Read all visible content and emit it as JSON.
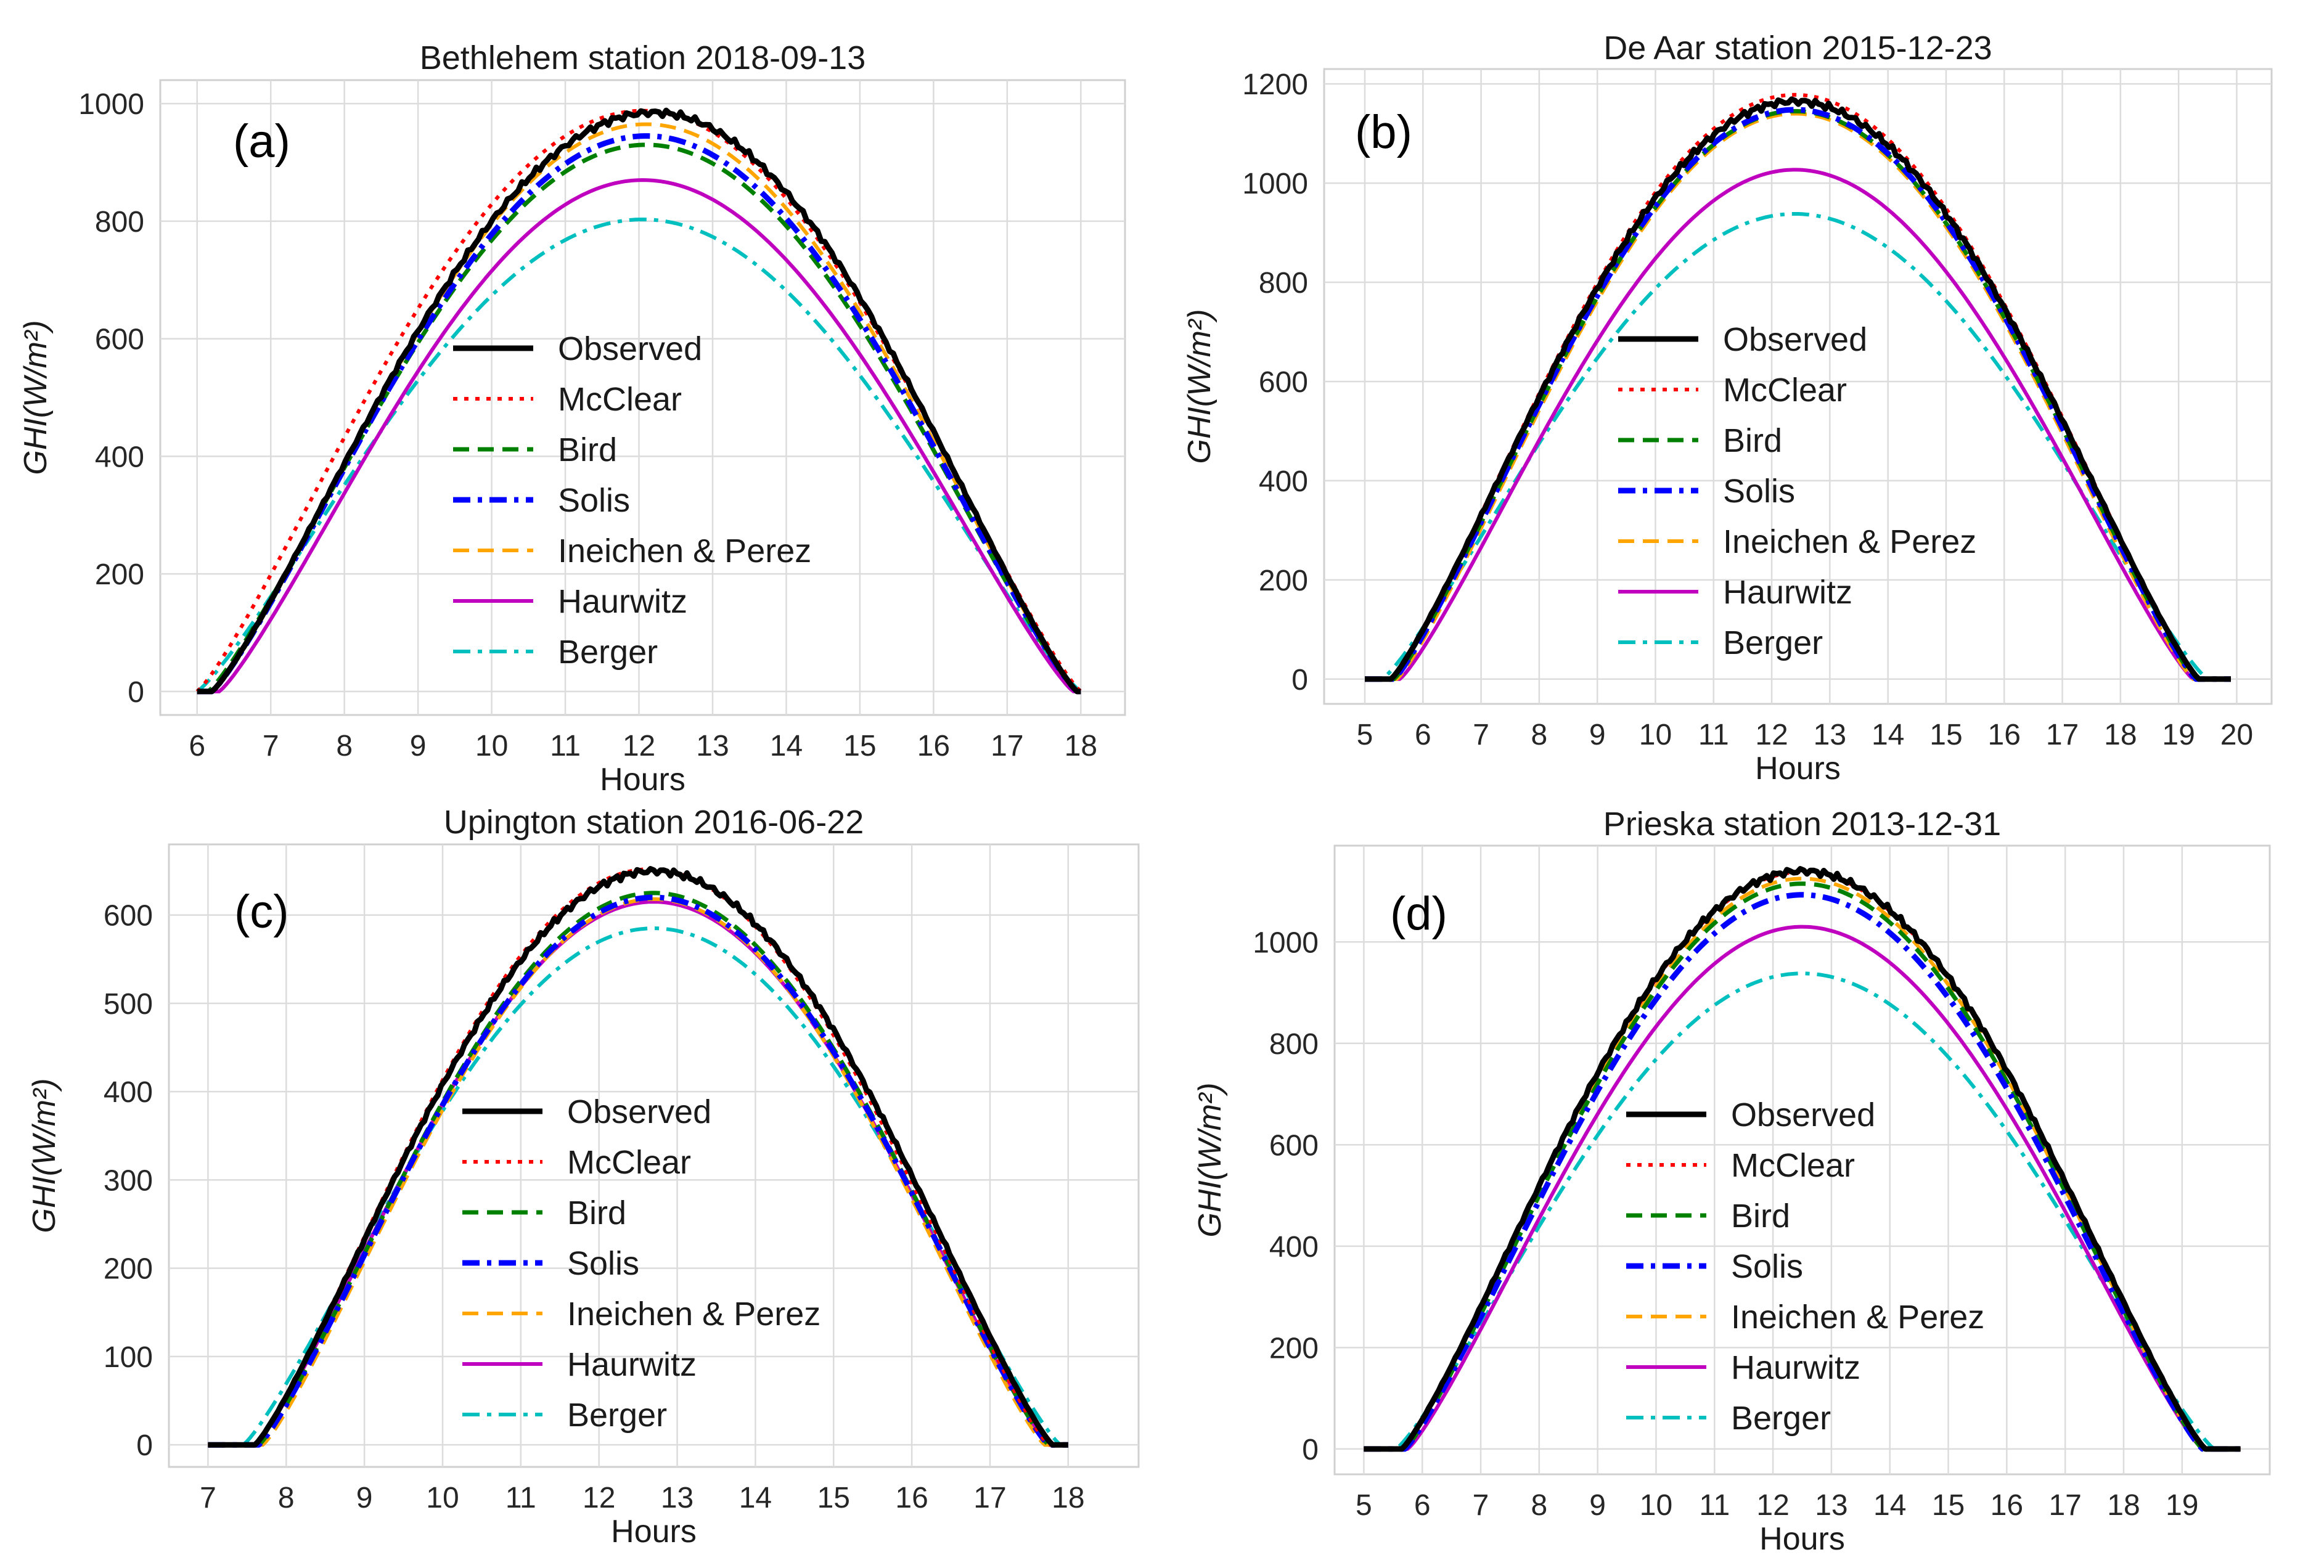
{
  "chart_data": [
    {
      "type": "line",
      "panel_label": "(a)",
      "title": "Bethlehem station 2018-09-13",
      "xlabel": "Hours",
      "ylabel": "GHI(W/m²)",
      "xlim": [
        5.5,
        18.6
      ],
      "ylim": [
        -40,
        1040
      ],
      "xticks": [
        6,
        7,
        8,
        9,
        10,
        11,
        12,
        13,
        14,
        15,
        16,
        17,
        18
      ],
      "yticks": [
        0,
        200,
        400,
        600,
        800,
        1000
      ],
      "grid": true,
      "legend_position": "center",
      "series": [
        {
          "name": "Observed",
          "style": "observed",
          "x_start": 6.2,
          "x_end": 17.95,
          "peak": 985,
          "peak_x": 12.2,
          "flat_start": 6.0,
          "flat_end": 18.0
        },
        {
          "name": "McClear",
          "style": "mcclear",
          "x_start": 6.0,
          "x_end": 18.0,
          "peak": 988,
          "peak_x": 12.05,
          "flat_start": 6.0,
          "flat_end": 18.0
        },
        {
          "name": "Bird",
          "style": "bird",
          "x_start": 6.15,
          "x_end": 17.95,
          "peak": 930,
          "peak_x": 12.1,
          "flat_start": 6.0,
          "flat_end": 18.0
        },
        {
          "name": "Solis",
          "style": "solis",
          "x_start": 6.2,
          "x_end": 17.95,
          "peak": 945,
          "peak_x": 12.1,
          "flat_start": 6.0,
          "flat_end": 18.0
        },
        {
          "name": "Ineichen & Perez",
          "style": "ineichen",
          "x_start": 6.2,
          "x_end": 17.95,
          "peak": 965,
          "peak_x": 12.1,
          "flat_start": 6.0,
          "flat_end": 18.0
        },
        {
          "name": "Haurwitz",
          "style": "haurwitz",
          "x_start": 6.3,
          "x_end": 17.9,
          "peak": 870,
          "peak_x": 12.05,
          "flat_start": 6.0,
          "flat_end": 18.0
        },
        {
          "name": "Berger",
          "style": "berger",
          "x_start": 6.0,
          "x_end": 18.0,
          "peak": 803,
          "peak_x": 12.05,
          "flat_start": 6.0,
          "flat_end": 18.0
        }
      ]
    },
    {
      "type": "line",
      "panel_label": "(b)",
      "title": "De Aar station 2015-12-23",
      "xlabel": "Hours",
      "ylabel": "GHI(W/m²)",
      "xlim": [
        4.3,
        20.6
      ],
      "ylim": [
        -50,
        1230
      ],
      "xticks": [
        5,
        6,
        7,
        8,
        9,
        10,
        11,
        12,
        13,
        14,
        15,
        16,
        17,
        18,
        19,
        20
      ],
      "yticks": [
        0,
        200,
        400,
        600,
        800,
        1000,
        1200
      ],
      "grid": true,
      "legend_position": "center",
      "series": [
        {
          "name": "Observed",
          "style": "observed",
          "x_start": 5.45,
          "x_end": 19.35,
          "peak": 1165,
          "peak_x": 12.4,
          "flat_start": 5.0,
          "flat_end": 19.9
        },
        {
          "name": "McClear",
          "style": "mcclear",
          "x_start": 5.45,
          "x_end": 19.35,
          "peak": 1178,
          "peak_x": 12.4,
          "flat_start": 5.0,
          "flat_end": 19.9
        },
        {
          "name": "Bird",
          "style": "bird",
          "x_start": 5.5,
          "x_end": 19.3,
          "peak": 1145,
          "peak_x": 12.4,
          "flat_start": 5.0,
          "flat_end": 19.9
        },
        {
          "name": "Solis",
          "style": "solis",
          "x_start": 5.5,
          "x_end": 19.3,
          "peak": 1148,
          "peak_x": 12.4,
          "flat_start": 5.0,
          "flat_end": 19.9
        },
        {
          "name": "Ineichen & Perez",
          "style": "ineichen",
          "x_start": 5.55,
          "x_end": 19.25,
          "peak": 1140,
          "peak_x": 12.4,
          "flat_start": 5.0,
          "flat_end": 19.9
        },
        {
          "name": "Haurwitz",
          "style": "haurwitz",
          "x_start": 5.6,
          "x_end": 19.25,
          "peak": 1027,
          "peak_x": 12.4,
          "flat_start": 5.0,
          "flat_end": 19.9
        },
        {
          "name": "Berger",
          "style": "berger",
          "x_start": 5.3,
          "x_end": 19.5,
          "peak": 938,
          "peak_x": 12.4,
          "flat_start": 5.0,
          "flat_end": 19.9
        }
      ]
    },
    {
      "type": "line",
      "panel_label": "(c)",
      "title": "Upington station 2016-06-22",
      "xlabel": "Hours",
      "ylabel": "GHI(W/m²)",
      "xlim": [
        6.5,
        18.9
      ],
      "ylim": [
        -25,
        680
      ],
      "xticks": [
        7,
        8,
        9,
        10,
        11,
        12,
        13,
        14,
        15,
        16,
        17,
        18
      ],
      "yticks": [
        0,
        100,
        200,
        300,
        400,
        500,
        600
      ],
      "grid": true,
      "legend_position": "center",
      "series": [
        {
          "name": "Observed",
          "style": "observed",
          "x_start": 7.6,
          "x_end": 17.8,
          "peak": 650,
          "peak_x": 12.7,
          "flat_start": 7.0,
          "flat_end": 18.0
        },
        {
          "name": "McClear",
          "style": "mcclear",
          "x_start": 7.6,
          "x_end": 17.75,
          "peak": 652,
          "peak_x": 12.65,
          "flat_start": 7.0,
          "flat_end": 18.0
        },
        {
          "name": "Bird",
          "style": "bird",
          "x_start": 7.65,
          "x_end": 17.75,
          "peak": 625,
          "peak_x": 12.7,
          "flat_start": 7.0,
          "flat_end": 18.0
        },
        {
          "name": "Solis",
          "style": "solis",
          "x_start": 7.65,
          "x_end": 17.75,
          "peak": 620,
          "peak_x": 12.7,
          "flat_start": 7.0,
          "flat_end": 18.0
        },
        {
          "name": "Ineichen & Perez",
          "style": "ineichen",
          "x_start": 7.7,
          "x_end": 17.7,
          "peak": 618,
          "peak_x": 12.7,
          "flat_start": 7.0,
          "flat_end": 18.0
        },
        {
          "name": "Haurwitz",
          "style": "haurwitz",
          "x_start": 7.6,
          "x_end": 17.75,
          "peak": 615,
          "peak_x": 12.7,
          "flat_start": 7.0,
          "flat_end": 18.0
        },
        {
          "name": "Berger",
          "style": "berger",
          "x_start": 7.45,
          "x_end": 17.9,
          "peak": 585,
          "peak_x": 12.7,
          "flat_start": 7.0,
          "flat_end": 18.0
        }
      ]
    },
    {
      "type": "line",
      "panel_label": "(d)",
      "title": "Prieska station 2013-12-31",
      "xlabel": "Hours",
      "ylabel": "GHI(W/m²)",
      "xlim": [
        4.5,
        20.5
      ],
      "ylim": [
        -50,
        1190
      ],
      "xticks": [
        5,
        6,
        7,
        8,
        9,
        10,
        11,
        12,
        13,
        14,
        15,
        16,
        17,
        18,
        19
      ],
      "yticks": [
        0,
        200,
        400,
        600,
        800,
        1000
      ],
      "grid": true,
      "legend_position": "center",
      "series": [
        {
          "name": "Observed",
          "style": "observed",
          "x_start": 5.65,
          "x_end": 19.4,
          "peak": 1140,
          "peak_x": 12.5,
          "flat_start": 5.0,
          "flat_end": 20.0
        },
        {
          "name": "McClear",
          "style": "mcclear",
          "x_start": 5.65,
          "x_end": 19.4,
          "peak": 1138,
          "peak_x": 12.5,
          "flat_start": 5.0,
          "flat_end": 20.0
        },
        {
          "name": "Bird",
          "style": "bird",
          "x_start": 5.7,
          "x_end": 19.35,
          "peak": 1115,
          "peak_x": 12.5,
          "flat_start": 5.0,
          "flat_end": 20.0
        },
        {
          "name": "Solis",
          "style": "solis",
          "x_start": 5.7,
          "x_end": 19.35,
          "peak": 1093,
          "peak_x": 12.5,
          "flat_start": 5.0,
          "flat_end": 20.0
        },
        {
          "name": "Ineichen & Perez",
          "style": "ineichen",
          "x_start": 5.7,
          "x_end": 19.35,
          "peak": 1125,
          "peak_x": 12.5,
          "flat_start": 5.0,
          "flat_end": 20.0
        },
        {
          "name": "Haurwitz",
          "style": "haurwitz",
          "x_start": 5.75,
          "x_end": 19.35,
          "peak": 1030,
          "peak_x": 12.5,
          "flat_start": 5.0,
          "flat_end": 20.0
        },
        {
          "name": "Berger",
          "style": "berger",
          "x_start": 5.55,
          "x_end": 19.55,
          "peak": 938,
          "peak_x": 12.5,
          "flat_start": 5.0,
          "flat_end": 20.0
        }
      ]
    }
  ],
  "styles": {
    "observed": {
      "color": "#000000",
      "dash": ""
    },
    "mcclear": {
      "color": "#ff0000",
      "dash": "dotted"
    },
    "bird": {
      "color": "#008000",
      "dash": "dashed"
    },
    "solis": {
      "color": "#0000ff",
      "dash": "dashdot"
    },
    "ineichen": {
      "color": "#ffa500",
      "dash": "dashed"
    },
    "haurwitz": {
      "color": "#bf00bf",
      "dash": ""
    },
    "berger": {
      "color": "#00bfbf",
      "dash": "dashdot"
    }
  }
}
